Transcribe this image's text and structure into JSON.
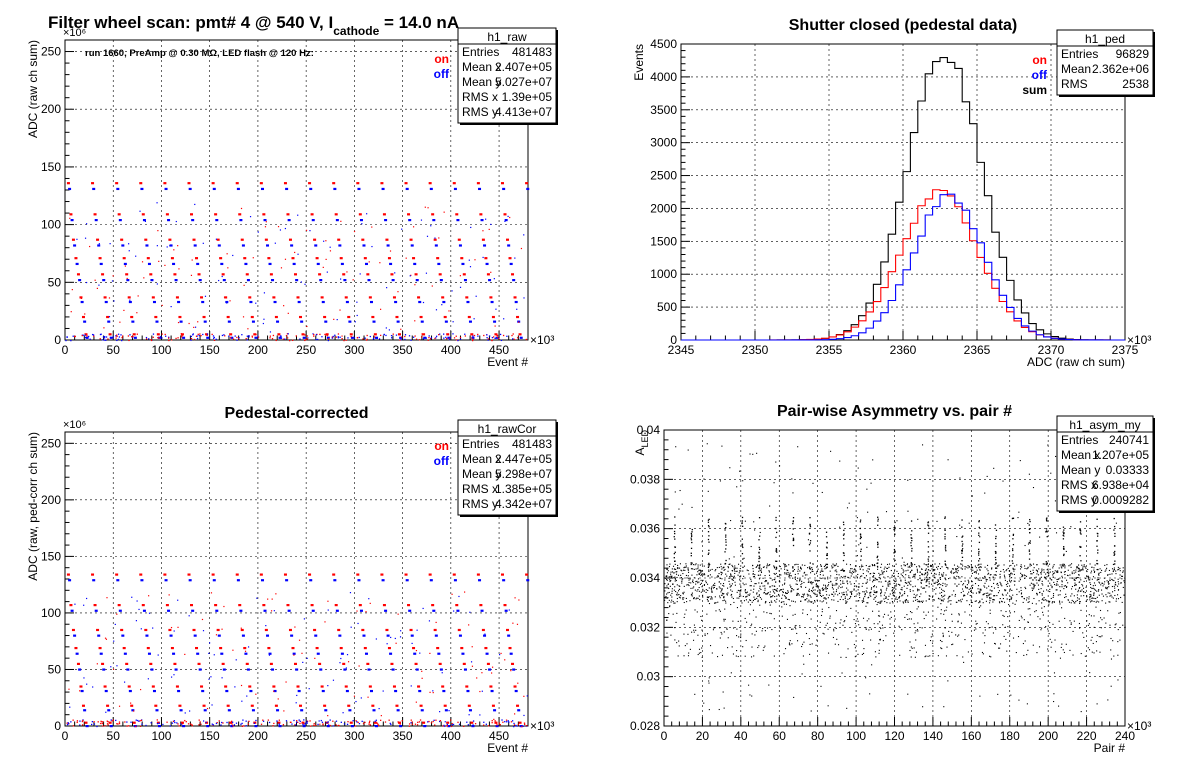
{
  "page_title": {
    "main": "Filter wheel scan: pmt#   4 @   540 V, I",
    "subscript": "cathode",
    "tail": "  = 14.0 nA"
  },
  "chart_data": [
    {
      "id": "raw",
      "type": "scatter",
      "title": "",
      "annotation": "run 1660, PreAmp @ 0.30 MΩ, LED flash @  120 Hz:",
      "xlabel": "Event #",
      "ylabel": "ADC (raw ch sum)",
      "x_exponent": "×10³",
      "y_exponent": "×10⁶",
      "xlim": [
        0,
        480
      ],
      "ylim": [
        0,
        260
      ],
      "xticks": [
        0,
        50,
        100,
        150,
        200,
        250,
        300,
        350,
        400,
        450
      ],
      "yticks": [
        0,
        50,
        100,
        150,
        200,
        250
      ],
      "grid": true,
      "legend": [
        {
          "label": "on",
          "color": "#ff0000"
        },
        {
          "label": "off",
          "color": "#0000ff"
        }
      ],
      "cycle_period": 25,
      "levels_on": [
        136,
        109,
        87,
        71,
        57,
        37,
        20,
        5
      ],
      "levels_off": [
        131,
        104,
        82,
        66,
        52,
        33,
        16,
        2
      ],
      "stats": {
        "name": "h1_raw",
        "rows": [
          [
            "Entries",
            "481483"
          ],
          [
            "Mean x",
            "2.407e+05"
          ],
          [
            "Mean y",
            "5.027e+07"
          ],
          [
            "RMS x",
            "1.39e+05"
          ],
          [
            "RMS y",
            "4.413e+07"
          ]
        ]
      }
    },
    {
      "id": "ped",
      "type": "histogram",
      "title": "Shutter closed (pedestal data)",
      "xlabel": "ADC (raw ch sum)",
      "ylabel": "Events",
      "x_exponent": "×10³",
      "xlim": [
        2345,
        2375
      ],
      "ylim": [
        0,
        4500
      ],
      "xticks": [
        2345,
        2350,
        2355,
        2360,
        2365,
        2370,
        2375
      ],
      "yticks": [
        0,
        500,
        1000,
        1500,
        2000,
        2500,
        3000,
        3500,
        4000,
        4500
      ],
      "grid": true,
      "legend": [
        {
          "label": "on",
          "color": "#ff0000"
        },
        {
          "label": "off",
          "color": "#0000ff"
        },
        {
          "label": "sum",
          "color": "#000000"
        }
      ],
      "series": [
        {
          "name": "sum",
          "color": "#000000",
          "mean": 2362.8,
          "sigma": 2.5,
          "peak": 4350
        },
        {
          "name": "on",
          "color": "#ff0000",
          "mean": 2362.5,
          "sigma": 2.6,
          "peak": 2250
        },
        {
          "name": "off",
          "color": "#0000ff",
          "mean": 2363.1,
          "sigma": 2.4,
          "peak": 2180
        }
      ],
      "stats": {
        "name": "h1_ped",
        "rows": [
          [
            "Entries",
            "96829"
          ],
          [
            "Mean",
            "2.362e+06"
          ],
          [
            "RMS",
            "2538"
          ]
        ]
      }
    },
    {
      "id": "rawCor",
      "type": "scatter",
      "title": "Pedestal-corrected",
      "xlabel": "Event #",
      "ylabel": "ADC (raw, ped-corr ch sum)",
      "x_exponent": "×10³",
      "y_exponent": "×10⁶",
      "xlim": [
        0,
        480
      ],
      "ylim": [
        0,
        260
      ],
      "xticks": [
        0,
        50,
        100,
        150,
        200,
        250,
        300,
        350,
        400,
        450
      ],
      "yticks": [
        0,
        50,
        100,
        150,
        200,
        250
      ],
      "grid": true,
      "legend": [
        {
          "label": "on",
          "color": "#ff0000"
        },
        {
          "label": "off",
          "color": "#0000ff"
        }
      ],
      "cycle_period": 25,
      "levels_on": [
        134,
        107,
        85,
        69,
        55,
        35,
        18,
        3
      ],
      "levels_off": [
        129,
        102,
        80,
        64,
        50,
        31,
        14,
        0
      ],
      "stats": {
        "name": "h1_rawCor",
        "rows": [
          [
            "Entries",
            "481483"
          ],
          [
            "Mean x",
            "2.447e+05"
          ],
          [
            "Mean y",
            "5.298e+07"
          ],
          [
            "RMS x",
            "1.385e+05"
          ],
          [
            "RMS y",
            "4.342e+07"
          ]
        ]
      }
    },
    {
      "id": "asym",
      "type": "scatter",
      "title": "Pair-wise Asymmetry vs. pair #",
      "xlabel": "Pair #",
      "ylabel": "A",
      "ylabel_sub": "LED",
      "x_exponent": "×10³",
      "xlim": [
        0,
        240
      ],
      "ylim": [
        0.028,
        0.04
      ],
      "xticks": [
        0,
        20,
        40,
        60,
        80,
        100,
        120,
        140,
        160,
        180,
        200,
        220,
        240
      ],
      "yticks": [
        0.028,
        0.03,
        0.032,
        0.034,
        0.036,
        0.038,
        0.04
      ],
      "ytick_labels": [
        "0.028",
        "0.03",
        "0.032",
        "0.034",
        "0.036",
        "0.038",
        "0.04"
      ],
      "grid": true,
      "band_center": 0.0338,
      "stats": {
        "name": "h1_asym_my",
        "rows": [
          [
            "Entries",
            "240741"
          ],
          [
            "Mean x",
            "1.207e+05"
          ],
          [
            "Mean y",
            "0.03333"
          ],
          [
            "RMS x",
            "6.938e+04"
          ],
          [
            "RMS y",
            "0.0009282"
          ]
        ]
      }
    }
  ]
}
